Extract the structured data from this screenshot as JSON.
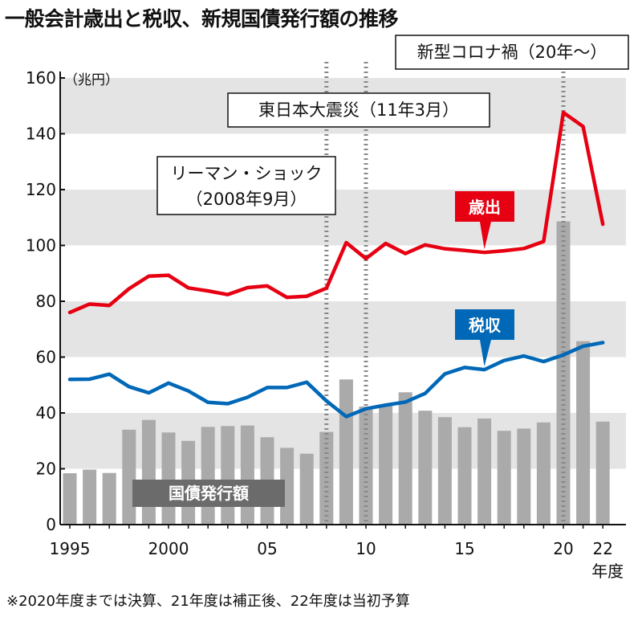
{
  "title": "一般会計歳出と税収、新規国債発行額の推移",
  "footnote": "※2020年度までは決算、21年度は補正後、22年度は当初予算",
  "chart_data": {
    "type": "bar+line",
    "unit_label": "（兆円）",
    "x_unit_label": "年度",
    "years": [
      1995,
      1996,
      1997,
      1998,
      1999,
      2000,
      2001,
      2002,
      2003,
      2004,
      2005,
      2006,
      2007,
      2008,
      2009,
      2010,
      2011,
      2012,
      2013,
      2014,
      2015,
      2016,
      2017,
      2018,
      2019,
      2020,
      2021,
      2022
    ],
    "x_tick_labels": [
      {
        "year": 1995,
        "label": "1995"
      },
      {
        "year": 2000,
        "label": "2000"
      },
      {
        "year": 2005,
        "label": "05"
      },
      {
        "year": 2010,
        "label": "10"
      },
      {
        "year": 2015,
        "label": "15"
      },
      {
        "year": 2020,
        "label": "20"
      },
      {
        "year": 2022,
        "label": "22"
      }
    ],
    "y_ticks": [
      0,
      20,
      40,
      60,
      80,
      100,
      120,
      140,
      160
    ],
    "ylim": [
      0,
      160
    ],
    "series": [
      {
        "name": "歳出",
        "kind": "line",
        "color": "#e60012",
        "values": [
          76,
          79,
          78.5,
          84.5,
          89,
          89.3,
          84.8,
          83.7,
          82.4,
          84.9,
          85.5,
          81.4,
          81.8,
          84.7,
          101,
          95.3,
          100.7,
          97.1,
          100.2,
          98.8,
          98.2,
          97.5,
          98.1,
          98.9,
          101.4,
          147.6,
          142.6,
          107.6
        ]
      },
      {
        "name": "税収",
        "kind": "line",
        "color": "#0068b7",
        "values": [
          52,
          52.1,
          53.9,
          49.4,
          47.2,
          50.7,
          47.9,
          43.8,
          43.3,
          45.6,
          49.1,
          49.1,
          51,
          44.3,
          38.7,
          41.5,
          42.8,
          43.9,
          47,
          54,
          56.3,
          55.5,
          58.8,
          60.4,
          58.4,
          60.8,
          63.9,
          65.2
        ]
      },
      {
        "name": "国債発行額",
        "kind": "bar",
        "color": "#aaaaaa",
        "values": [
          18.4,
          19.7,
          18.5,
          34,
          37.5,
          33,
          30,
          35,
          35.3,
          35.5,
          31.3,
          27.5,
          25.4,
          33.2,
          52,
          42.3,
          42.8,
          47.4,
          40.8,
          38.5,
          34.9,
          38,
          33.6,
          34.4,
          36.6,
          108.6,
          65.7,
          36.9
        ]
      }
    ],
    "annotations": [
      {
        "text_lines": [
          "リーマン・ショック",
          "（2008年9月）"
        ],
        "year": 2008
      },
      {
        "text_lines": [
          "東日本大震災（11年3月）"
        ],
        "year": 2010
      },
      {
        "text_lines": [
          "新型コロナ禍（20年〜）"
        ],
        "year": 2020
      }
    ],
    "grid": "alternating-bands"
  }
}
